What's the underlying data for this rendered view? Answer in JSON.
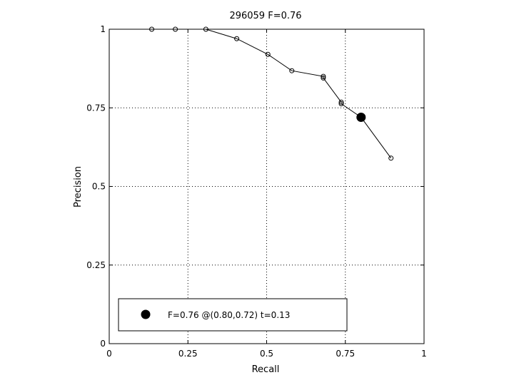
{
  "chart_data": {
    "type": "line",
    "title": "296059 F=0.76",
    "xlabel": "Recall",
    "ylabel": "Precision",
    "xlim": [
      0,
      1
    ],
    "ylim": [
      0,
      1
    ],
    "grid": true,
    "legend_position": "bottom-left",
    "x_ticks": [
      {
        "value": 0,
        "label": "0"
      },
      {
        "value": 0.25,
        "label": "0.25"
      },
      {
        "value": 0.5,
        "label": "0.5"
      },
      {
        "value": 0.75,
        "label": "0.75"
      },
      {
        "value": 1,
        "label": "1"
      }
    ],
    "y_ticks": [
      {
        "value": 0,
        "label": "0"
      },
      {
        "value": 0.25,
        "label": "0.25"
      },
      {
        "value": 0.5,
        "label": "0.5"
      },
      {
        "value": 0.75,
        "label": "0.75"
      },
      {
        "value": 1,
        "label": "1"
      }
    ],
    "series": [
      {
        "points": [
          {
            "x": 0.135,
            "y": 1.0
          },
          {
            "x": 0.21,
            "y": 1.0
          },
          {
            "x": 0.307,
            "y": 1.0
          },
          {
            "x": 0.405,
            "y": 0.97
          },
          {
            "x": 0.504,
            "y": 0.92
          },
          {
            "x": 0.58,
            "y": 0.868
          },
          {
            "x": 0.68,
            "y": 0.85
          },
          {
            "x": 0.68,
            "y": 0.845
          },
          {
            "x": 0.737,
            "y": 0.768
          },
          {
            "x": 0.737,
            "y": 0.763
          },
          {
            "x": 0.8,
            "y": 0.72
          },
          {
            "x": 0.895,
            "y": 0.59
          }
        ]
      }
    ],
    "best_point": {
      "x": 0.8,
      "y": 0.72
    },
    "legend": {
      "label": "F=0.76 @(0.80,0.72) t=0.13"
    }
  }
}
